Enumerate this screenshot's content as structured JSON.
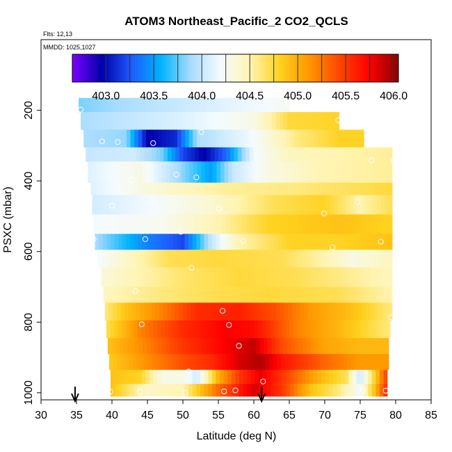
{
  "chart_data": {
    "type": "heatmap",
    "title": "ATOM3 Northeast_Pacific_2 CO2_QCLS",
    "flights_note": "Flts: 12,13",
    "dates_note": "MMDD: 1025,1027",
    "xlabel": "Latitude (deg N)",
    "ylabel": "PSXC (mbar)",
    "xlim": [
      30,
      85
    ],
    "ylim": [
      1020,
      0
    ],
    "x_ticks": [
      30,
      35,
      40,
      45,
      50,
      55,
      60,
      65,
      70,
      75,
      80,
      85
    ],
    "y_ticks": [
      200,
      400,
      600,
      800,
      1000
    ],
    "colorbar": {
      "range": [
        402.65,
        406.05
      ],
      "ticks": [
        403.0,
        403.5,
        404.0,
        404.5,
        405.0,
        405.5,
        406.0
      ],
      "colors": [
        "#7d00ff",
        "#0000aa",
        "#1e5bff",
        "#00b4ff",
        "#a9dcff",
        "#f4fbff",
        "#fff4b0",
        "#ffd21e",
        "#ff9600",
        "#ff4600",
        "#ff0000",
        "#8b0000"
      ]
    },
    "arrow_latitudes": [
      34.8,
      61.1
    ],
    "bands": [
      {
        "pmin": 165,
        "pmax": 205,
        "lat_start": 35.3,
        "lat_end": 65.0,
        "stops": [
          [
            35.3,
            403.8
          ],
          [
            45,
            403.95
          ],
          [
            55,
            404.1
          ],
          [
            65,
            404.25
          ]
        ]
      },
      {
        "pmin": 205,
        "pmax": 255,
        "lat_start": 35.6,
        "lat_end": 72.0,
        "stops": [
          [
            35.6,
            403.9
          ],
          [
            50,
            404.1
          ],
          [
            60,
            404.3
          ],
          [
            65,
            404.75
          ],
          [
            72,
            404.8
          ]
        ]
      },
      {
        "pmin": 255,
        "pmax": 305,
        "lat_start": 36.0,
        "lat_end": 75.5,
        "stops": [
          [
            36,
            403.9
          ],
          [
            42,
            403.85
          ],
          [
            45,
            402.95
          ],
          [
            49,
            403.1
          ],
          [
            52,
            403.9
          ],
          [
            60,
            404.2
          ],
          [
            66,
            404.6
          ],
          [
            72,
            404.8
          ],
          [
            75.5,
            404.8
          ]
        ]
      },
      {
        "pmin": 305,
        "pmax": 345,
        "lat_start": 36.3,
        "lat_end": 79.5,
        "stops": [
          [
            36.3,
            404.0
          ],
          [
            43,
            404.05
          ],
          [
            47,
            403.8
          ],
          [
            50,
            403.2
          ],
          [
            53,
            402.95
          ],
          [
            56,
            403.3
          ],
          [
            60,
            404.2
          ],
          [
            65,
            404.45
          ],
          [
            72,
            404.5
          ],
          [
            79.5,
            404.55
          ]
        ]
      },
      {
        "pmin": 345,
        "pmax": 405,
        "lat_start": 36.6,
        "lat_end": 79.5,
        "stops": [
          [
            36.6,
            404.1
          ],
          [
            44,
            404.3
          ],
          [
            48,
            404.0
          ],
          [
            51,
            403.75
          ],
          [
            54,
            403.5
          ],
          [
            57,
            404.0
          ],
          [
            62,
            404.3
          ],
          [
            70,
            404.5
          ],
          [
            79.5,
            404.55
          ]
        ]
      },
      {
        "pmin": 405,
        "pmax": 440,
        "lat_start": 37.0,
        "lat_end": 79.5,
        "stops": [
          [
            37,
            404.1
          ],
          [
            48,
            404.4
          ],
          [
            56,
            404.55
          ],
          [
            65,
            404.6
          ],
          [
            75,
            404.7
          ],
          [
            79.5,
            404.75
          ]
        ]
      },
      {
        "pmin": 440,
        "pmax": 495,
        "lat_start": 37.2,
        "lat_end": 79.5,
        "stops": [
          [
            37.2,
            404.05
          ],
          [
            46,
            404.2
          ],
          [
            55,
            404.4
          ],
          [
            63,
            404.7
          ],
          [
            70,
            404.8
          ],
          [
            75,
            404.5
          ],
          [
            79.5,
            404.7
          ]
        ]
      },
      {
        "pmin": 495,
        "pmax": 550,
        "lat_start": 37.4,
        "lat_end": 79.5,
        "stops": [
          [
            37.4,
            404.2
          ],
          [
            47,
            404.25
          ],
          [
            55,
            404.5
          ],
          [
            62,
            404.8
          ],
          [
            72,
            404.9
          ],
          [
            79.5,
            404.8
          ]
        ]
      },
      {
        "pmin": 550,
        "pmax": 595,
        "lat_start": 37.6,
        "lat_end": 79.5,
        "stops": [
          [
            37.6,
            403.9
          ],
          [
            45,
            403.4
          ],
          [
            50,
            403.2
          ],
          [
            54,
            404.0
          ],
          [
            58,
            404.5
          ],
          [
            65,
            404.8
          ],
          [
            72,
            404.8
          ],
          [
            79.5,
            404.9
          ]
        ]
      },
      {
        "pmin": 595,
        "pmax": 645,
        "lat_start": 38.0,
        "lat_end": 79.5,
        "stops": [
          [
            38,
            404.2
          ],
          [
            44,
            404.5
          ],
          [
            48,
            404.7
          ],
          [
            55,
            404.75
          ],
          [
            64,
            404.7
          ],
          [
            70,
            404.5
          ],
          [
            74,
            404.3
          ],
          [
            79.5,
            404.45
          ]
        ]
      },
      {
        "pmin": 645,
        "pmax": 700,
        "lat_start": 38.5,
        "lat_end": 79.5,
        "stops": [
          [
            38.5,
            404.35
          ],
          [
            44,
            404.5
          ],
          [
            50,
            404.65
          ],
          [
            58,
            404.75
          ],
          [
            66,
            404.7
          ],
          [
            72,
            404.6
          ],
          [
            79.5,
            404.45
          ]
        ]
      },
      {
        "pmin": 700,
        "pmax": 745,
        "lat_start": 38.8,
        "lat_end": 79.5,
        "stops": [
          [
            38.8,
            404.45
          ],
          [
            46,
            404.6
          ],
          [
            54,
            404.7
          ],
          [
            62,
            404.75
          ],
          [
            72,
            404.7
          ],
          [
            79.5,
            404.5
          ]
        ]
      },
      {
        "pmin": 745,
        "pmax": 795,
        "lat_start": 39.0,
        "lat_end": 79.5,
        "stops": [
          [
            39,
            404.6
          ],
          [
            42,
            404.9
          ],
          [
            47,
            405.2
          ],
          [
            52,
            405.55
          ],
          [
            58,
            405.6
          ],
          [
            63,
            405.4
          ],
          [
            68,
            405.1
          ],
          [
            74,
            404.9
          ],
          [
            79.5,
            404.6
          ]
        ]
      },
      {
        "pmin": 795,
        "pmax": 845,
        "lat_start": 39.2,
        "lat_end": 79.2,
        "stops": [
          [
            39.2,
            404.7
          ],
          [
            44,
            405.2
          ],
          [
            50,
            405.55
          ],
          [
            56,
            405.75
          ],
          [
            60,
            405.7
          ],
          [
            66,
            405.2
          ],
          [
            72,
            404.95
          ],
          [
            79.2,
            404.6
          ]
        ]
      },
      {
        "pmin": 845,
        "pmax": 890,
        "lat_start": 39.4,
        "lat_end": 79.0,
        "stops": [
          [
            39.4,
            404.9
          ],
          [
            44,
            405.15
          ],
          [
            50,
            405.5
          ],
          [
            56,
            405.75
          ],
          [
            60,
            405.9
          ],
          [
            64,
            405.4
          ],
          [
            70,
            405.05
          ],
          [
            75,
            404.95
          ],
          [
            79,
            404.95
          ]
        ]
      },
      {
        "pmin": 890,
        "pmax": 935,
        "lat_start": 39.6,
        "lat_end": 79.0,
        "stops": [
          [
            39.6,
            404.85
          ],
          [
            44,
            405.1
          ],
          [
            50,
            405.4
          ],
          [
            54,
            405.55
          ],
          [
            58,
            405.85
          ],
          [
            61,
            405.95
          ],
          [
            64,
            405.65
          ],
          [
            70,
            405.3
          ],
          [
            75,
            405.1
          ],
          [
            79,
            405.1
          ]
        ]
      },
      {
        "pmin": 935,
        "pmax": 975,
        "lat_start": 39.8,
        "lat_end": 78.8,
        "stops": [
          [
            39.8,
            404.9
          ],
          [
            44,
            404.8
          ],
          [
            47,
            404.3
          ],
          [
            50,
            404.3
          ],
          [
            52,
            404.05
          ],
          [
            55,
            405.0
          ],
          [
            58,
            405.5
          ],
          [
            61,
            405.8
          ],
          [
            65,
            405.4
          ],
          [
            70,
            404.9
          ],
          [
            73,
            404.7
          ],
          [
            75,
            404.0
          ],
          [
            77,
            404.8
          ],
          [
            78.8,
            405.5
          ]
        ]
      },
      {
        "pmin": 975,
        "pmax": 1010,
        "lat_start": 39.8,
        "lat_end": 78.8,
        "stops": [
          [
            39.8,
            404.9
          ],
          [
            45,
            404.4
          ],
          [
            50,
            404.5
          ],
          [
            55,
            405.3
          ],
          [
            60,
            405.85
          ],
          [
            64,
            405.5
          ],
          [
            68,
            404.9
          ],
          [
            72,
            404.6
          ],
          [
            75,
            404.2
          ],
          [
            77,
            404.9
          ],
          [
            78.8,
            405.6
          ]
        ]
      }
    ],
    "points": [
      {
        "lat": 35.6,
        "p": 198
      },
      {
        "lat": 64.8,
        "p": 180
      },
      {
        "lat": 71.9,
        "p": 228
      },
      {
        "lat": 38.6,
        "p": 288
      },
      {
        "lat": 40.8,
        "p": 290
      },
      {
        "lat": 45.8,
        "p": 293
      },
      {
        "lat": 52.6,
        "p": 262
      },
      {
        "lat": 76.6,
        "p": 342
      },
      {
        "lat": 79.7,
        "p": 343
      },
      {
        "lat": 49.1,
        "p": 382
      },
      {
        "lat": 51.9,
        "p": 390
      },
      {
        "lat": 42.8,
        "p": 398
      },
      {
        "lat": 40.0,
        "p": 470
      },
      {
        "lat": 55.1,
        "p": 478
      },
      {
        "lat": 69.9,
        "p": 492
      },
      {
        "lat": 74.6,
        "p": 460
      },
      {
        "lat": 37.4,
        "p": 565
      },
      {
        "lat": 44.7,
        "p": 565
      },
      {
        "lat": 49.7,
        "p": 544
      },
      {
        "lat": 58.5,
        "p": 570
      },
      {
        "lat": 71.1,
        "p": 588
      },
      {
        "lat": 77.9,
        "p": 572
      },
      {
        "lat": 38.1,
        "p": 610
      },
      {
        "lat": 51.2,
        "p": 646
      },
      {
        "lat": 43.3,
        "p": 712
      },
      {
        "lat": 55.6,
        "p": 768
      },
      {
        "lat": 79.3,
        "p": 786
      },
      {
        "lat": 44.2,
        "p": 806
      },
      {
        "lat": 56.5,
        "p": 808
      },
      {
        "lat": 57.9,
        "p": 867
      },
      {
        "lat": 50.8,
        "p": 940
      },
      {
        "lat": 61.3,
        "p": 968
      },
      {
        "lat": 39.8,
        "p": 997
      },
      {
        "lat": 43.9,
        "p": 998
      },
      {
        "lat": 50.3,
        "p": 1000
      },
      {
        "lat": 55.8,
        "p": 996
      },
      {
        "lat": 57.4,
        "p": 993
      },
      {
        "lat": 75.4,
        "p": 992
      },
      {
        "lat": 78.6,
        "p": 994
      }
    ]
  }
}
